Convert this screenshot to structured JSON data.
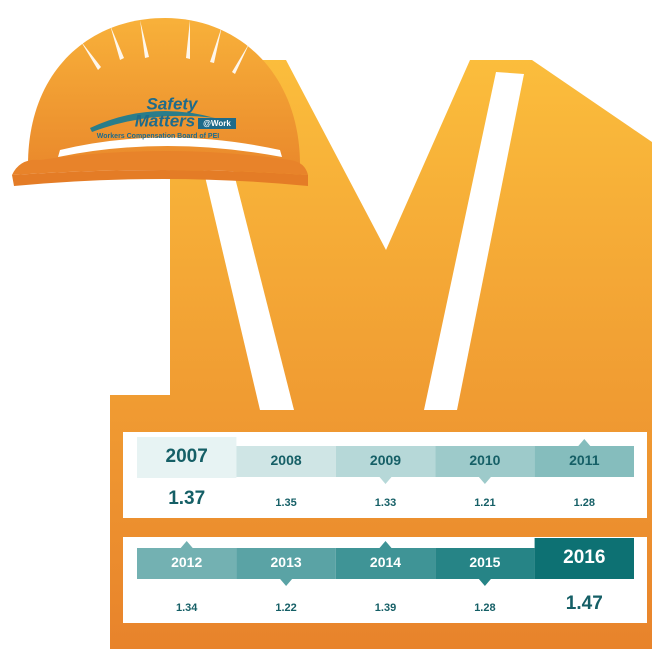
{
  "logo": {
    "line1": "Safety",
    "line2": "Matters",
    "tag": "@Work",
    "org": "Workers Compensation Board of PEI"
  },
  "rows": [
    [
      {
        "year": 2007,
        "value": 1.37
      },
      {
        "year": 2008,
        "value": 1.35
      },
      {
        "year": 2009,
        "value": 1.33
      },
      {
        "year": 2010,
        "value": 1.21
      },
      {
        "year": 2011,
        "value": 1.28
      }
    ],
    [
      {
        "year": 2012,
        "value": 1.34
      },
      {
        "year": 2013,
        "value": 1.22
      },
      {
        "year": 2014,
        "value": 1.39
      },
      {
        "year": 2015,
        "value": 1.28
      },
      {
        "year": 2016,
        "value": 1.47
      }
    ]
  ]
}
